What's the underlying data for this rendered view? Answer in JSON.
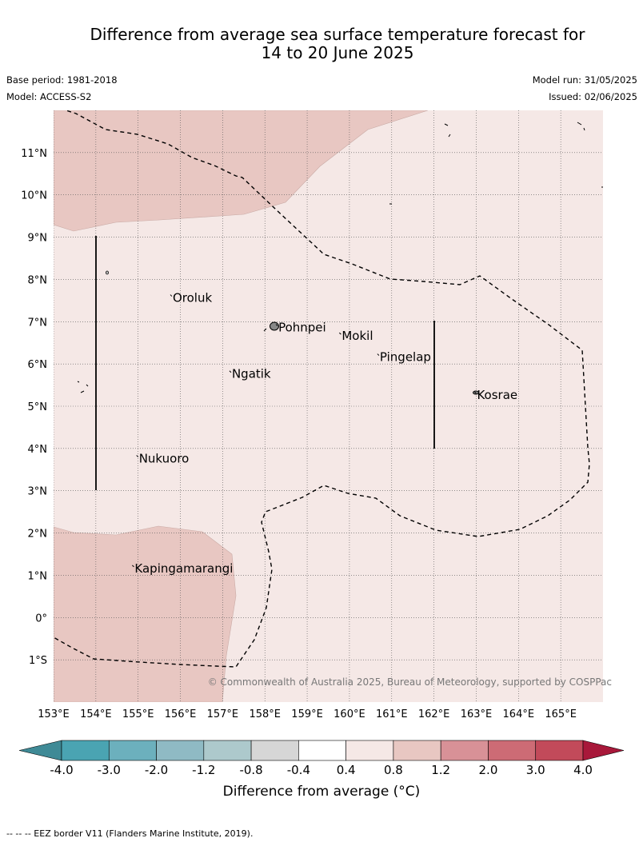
{
  "title": {
    "line1": "Difference from average sea surface temperature forecast for",
    "line2": "14 to 20 June 2025"
  },
  "meta": {
    "base_period": "Base period: 1981-2018",
    "model": "Model: ACCESS-S2",
    "model_run": "Model run: 31/05/2025",
    "issued": "Issued: 02/06/2025"
  },
  "map": {
    "lon_range": [
      153,
      166
    ],
    "lat_range": [
      -2,
      12
    ],
    "lat_ticks": [
      "11°N",
      "10°N",
      "9°N",
      "8°N",
      "7°N",
      "6°N",
      "5°N",
      "4°N",
      "3°N",
      "2°N",
      "1°N",
      "0°",
      "1°S"
    ],
    "lat_tick_values": [
      11,
      10,
      9,
      8,
      7,
      6,
      5,
      4,
      3,
      2,
      1,
      0,
      -1
    ],
    "lon_ticks": [
      "153°E",
      "154°E",
      "155°E",
      "156°E",
      "157°E",
      "158°E",
      "159°E",
      "160°E",
      "161°E",
      "162°E",
      "163°E",
      "164°E",
      "165°E"
    ],
    "lon_tick_values": [
      153,
      154,
      155,
      156,
      157,
      158,
      159,
      160,
      161,
      162,
      163,
      164,
      165
    ],
    "grid": "dotted",
    "places": [
      {
        "name": "Oroluk",
        "lon": 155.8,
        "lat": 7.6
      },
      {
        "name": "Pohnpei",
        "lon": 158.3,
        "lat": 6.9
      },
      {
        "name": "Mokil",
        "lon": 159.8,
        "lat": 6.7
      },
      {
        "name": "Pingelap",
        "lon": 160.7,
        "lat": 6.2
      },
      {
        "name": "Ngatik",
        "lon": 157.2,
        "lat": 5.8
      },
      {
        "name": "Kosrae",
        "lon": 163.0,
        "lat": 5.3
      },
      {
        "name": "Nukuoro",
        "lon": 155.0,
        "lat": 3.8
      },
      {
        "name": "Kapingamarangi",
        "lon": 154.9,
        "lat": 1.2
      }
    ],
    "background_color": "#f5e8e6",
    "warm_color": "#e8c7c2",
    "copyright": "© Commonwealth of Australia 2025, Bureau of Meteorology, supported by COSPPac"
  },
  "colorbar": {
    "ticks": [
      "-4.0",
      "-3.0",
      "-2.0",
      "-1.2",
      "-0.8",
      "-0.4",
      "0.4",
      "0.8",
      "1.2",
      "2.0",
      "3.0",
      "4.0"
    ],
    "colors": [
      "#3f8a96",
      "#4aa4b2",
      "#6cb0bd",
      "#8fbac4",
      "#adc9cc",
      "#d6d6d6",
      "#ffffff",
      "#f5e8e6",
      "#e8c7c2",
      "#d89197",
      "#cd6b75",
      "#c24a5a",
      "#a8183a"
    ],
    "label": "Difference from average (°C)"
  },
  "footnote": "--  --  -- EEZ border V11 (Flanders Marine Institute, 2019)."
}
